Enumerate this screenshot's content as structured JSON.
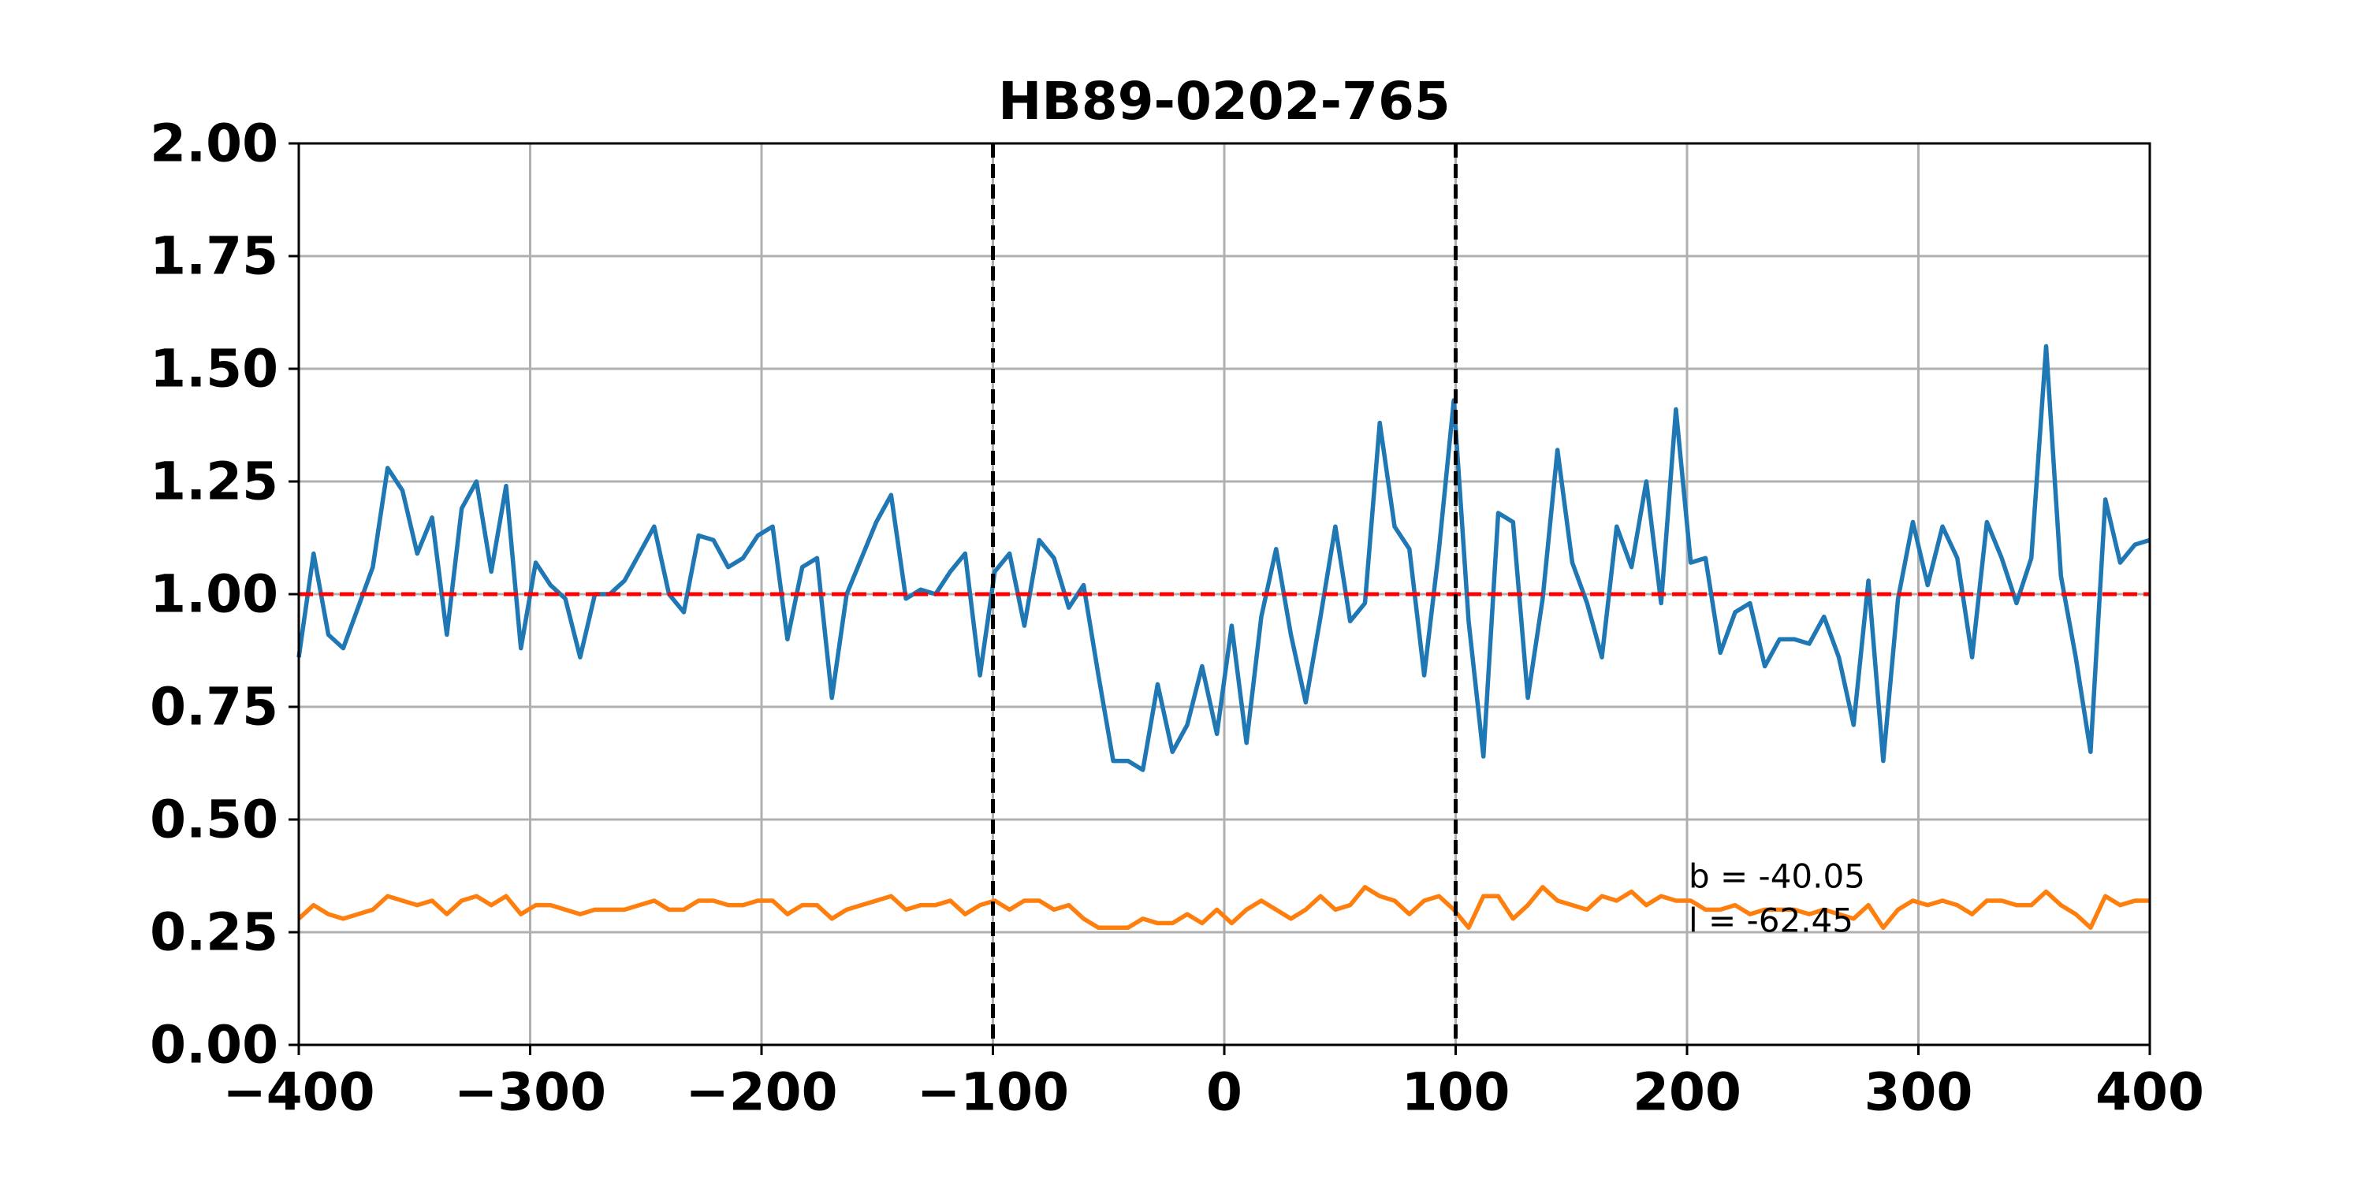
{
  "chart_data": {
    "type": "line",
    "title": "HB89-0202-765",
    "x": [
      -400,
      -393.6,
      -387.2,
      -380.8,
      -374.4,
      -368,
      -361.6,
      -355.2,
      -348.8,
      -342.4,
      -336,
      -329.6,
      -323.2,
      -316.8,
      -310.4,
      -304,
      -297.6,
      -291.2,
      -284.8,
      -278.4,
      -272,
      -265.6,
      -259.2,
      -252.8,
      -246.4,
      -240,
      -233.6,
      -227.2,
      -220.8,
      -214.4,
      -208,
      -201.6,
      -195.2,
      -188.8,
      -182.4,
      -176,
      -169.6,
      -163.2,
      -156.8,
      -150.4,
      -144,
      -137.6,
      -131.2,
      -124.8,
      -118.4,
      -112,
      -105.6,
      -99.2,
      -92.8,
      -86.4,
      -80,
      -73.6,
      -67.2,
      -60.8,
      -54.4,
      -48,
      -41.6,
      -35.2,
      -28.8,
      -22.4,
      -16,
      -9.6,
      -3.2,
      3.2,
      9.6,
      16,
      22.4,
      28.8,
      35.2,
      41.6,
      48,
      54.4,
      60.8,
      67.2,
      73.6,
      80,
      86.4,
      92.8,
      99.2,
      105.6,
      112,
      118.4,
      124.8,
      131.2,
      137.6,
      144,
      150.4,
      156.8,
      163.2,
      169.6,
      176,
      182.4,
      188.8,
      195.2,
      201.6,
      208,
      214.4,
      220.8,
      227.2,
      233.6,
      240,
      246.4,
      252.8,
      259.2,
      265.6,
      272,
      278.4,
      284.8,
      291.2,
      297.6,
      304,
      310.4,
      316.8,
      323.2,
      329.6,
      336,
      342.4,
      348.8,
      355.2,
      361.6,
      368,
      374.4,
      380.8,
      387.2,
      393.6,
      400
    ],
    "series": [
      {
        "color": "#1f77b4",
        "values": [
          0.86,
          1.09,
          0.91,
          0.88,
          0.97,
          1.06,
          1.28,
          1.23,
          1.09,
          1.17,
          0.91,
          1.19,
          1.25,
          1.05,
          1.24,
          0.88,
          1.07,
          1.02,
          0.99,
          0.86,
          1.0,
          1.0,
          1.03,
          1.09,
          1.15,
          1.0,
          0.96,
          1.13,
          1.12,
          1.06,
          1.08,
          1.13,
          1.15,
          0.9,
          1.06,
          1.08,
          0.77,
          1.0,
          1.08,
          1.16,
          1.22,
          0.99,
          1.01,
          1.0,
          1.05,
          1.09,
          0.82,
          1.05,
          1.09,
          0.93,
          1.12,
          1.08,
          0.97,
          1.02,
          0.82,
          0.63,
          0.63,
          0.61,
          0.8,
          0.65,
          0.71,
          0.84,
          0.69,
          0.93,
          0.67,
          0.95,
          1.1,
          0.91,
          0.76,
          0.95,
          1.15,
          0.94,
          0.98,
          1.38,
          1.15,
          1.1,
          0.82,
          1.1,
          1.43,
          0.94,
          0.64,
          1.18,
          1.16,
          0.77,
          0.99,
          1.32,
          1.07,
          0.98,
          0.86,
          1.15,
          1.06,
          1.25,
          0.98,
          1.41,
          1.07,
          1.08,
          0.87,
          0.96,
          0.98,
          0.84,
          0.9,
          0.9,
          0.89,
          0.95,
          0.86,
          0.71,
          1.03,
          0.63,
          0.99,
          1.16,
          1.02,
          1.15,
          1.08,
          0.86,
          1.16,
          1.08,
          0.98,
          1.08,
          1.55,
          1.04,
          0.86,
          0.65,
          1.21,
          1.07,
          1.11,
          1.12
        ]
      },
      {
        "color": "#ff7f0e",
        "values": [
          0.28,
          0.31,
          0.29,
          0.28,
          0.29,
          0.3,
          0.33,
          0.32,
          0.31,
          0.32,
          0.29,
          0.32,
          0.33,
          0.31,
          0.33,
          0.29,
          0.31,
          0.31,
          0.3,
          0.29,
          0.3,
          0.3,
          0.3,
          0.31,
          0.32,
          0.3,
          0.3,
          0.32,
          0.32,
          0.31,
          0.31,
          0.32,
          0.32,
          0.29,
          0.31,
          0.31,
          0.28,
          0.3,
          0.31,
          0.32,
          0.33,
          0.3,
          0.31,
          0.31,
          0.32,
          0.29,
          0.31,
          0.32,
          0.3,
          0.32,
          0.32,
          0.3,
          0.31,
          0.28,
          0.26,
          0.26,
          0.26,
          0.28,
          0.27,
          0.27,
          0.29,
          0.27,
          0.3,
          0.27,
          0.3,
          0.32,
          0.3,
          0.28,
          0.3,
          0.33,
          0.3,
          0.31,
          0.35,
          0.33,
          0.32,
          0.29,
          0.32,
          0.33,
          0.3,
          0.26,
          0.33,
          0.33,
          0.28,
          0.31,
          0.35,
          0.32,
          0.31,
          0.3,
          0.33,
          0.32,
          0.34,
          0.31,
          0.33,
          0.32,
          0.32,
          0.3,
          0.3,
          0.31,
          0.29,
          0.3,
          0.3,
          0.3,
          0.29,
          0.3,
          0.29,
          0.28,
          0.31,
          0.26,
          0.3,
          0.32,
          0.31,
          0.32,
          0.31,
          0.29,
          0.32,
          0.32,
          0.31,
          0.31,
          0.34,
          0.31,
          0.29,
          0.26,
          0.33,
          0.31,
          0.32,
          0.32
        ]
      }
    ],
    "hlines": [
      {
        "value": 1,
        "color": "#ff0000"
      }
    ],
    "vlines": [
      {
        "value": -100,
        "color": "#000000"
      },
      {
        "value": 100,
        "color": "#000000"
      }
    ],
    "annotations": [
      "b = -40.05",
      "l = -62.45"
    ],
    "xlim": [
      -400,
      400
    ],
    "xticks": [
      -400,
      -300,
      -200,
      -100,
      0,
      100,
      200,
      300,
      400
    ],
    "ylim": [
      0,
      2
    ],
    "yticks": [
      {
        "value": 0,
        "label": "0.00"
      },
      {
        "value": 0.25,
        "label": "0.25"
      },
      {
        "value": 0.5,
        "label": "0.50"
      },
      {
        "value": 0.75,
        "label": "0.75"
      },
      {
        "value": 1,
        "label": "1.00"
      },
      {
        "value": 1.25,
        "label": "1.25"
      },
      {
        "value": 1.5,
        "label": "1.50"
      },
      {
        "value": 1.75,
        "label": "1.75"
      },
      {
        "value": 2,
        "label": "2.00"
      }
    ],
    "grid": true
  }
}
